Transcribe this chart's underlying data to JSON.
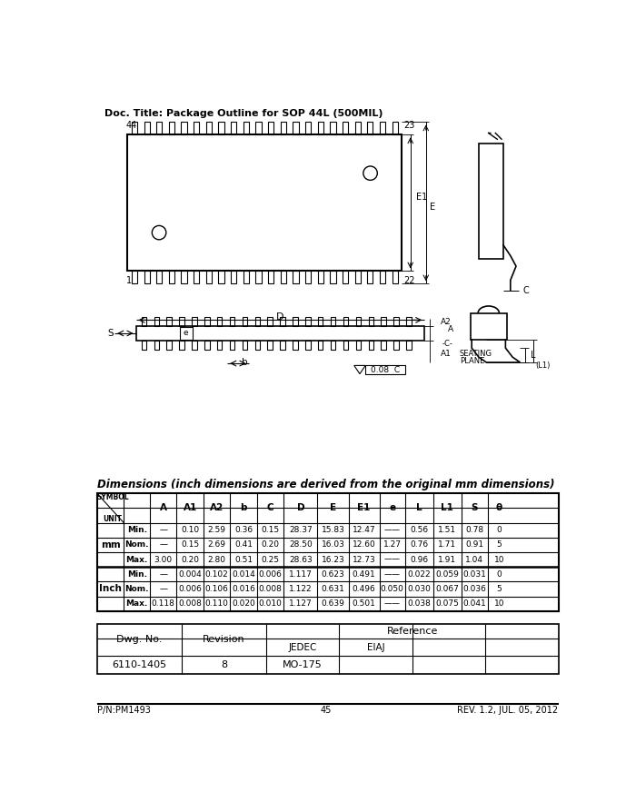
{
  "title": "Doc. Title: Package Outline for SOP 44L (500MIL)",
  "bg_color": "#ffffff",
  "dim_table_title": "Dimensions (inch dimensions are derived from the original mm dimensions)",
  "headers": [
    "A",
    "A1",
    "A2",
    "b",
    "C",
    "D",
    "E",
    "E1",
    "e",
    "L",
    "L1",
    "S",
    "θ"
  ],
  "row_data": [
    [
      "—",
      "0.10",
      "2.59",
      "0.36",
      "0.15",
      "28.37",
      "15.83",
      "12.47",
      "——",
      "0.56",
      "1.51",
      "0.78",
      "0"
    ],
    [
      "—",
      "0.15",
      "2.69",
      "0.41",
      "0.20",
      "28.50",
      "16.03",
      "12.60",
      "1.27",
      "0.76",
      "1.71",
      "0.91",
      "5"
    ],
    [
      "3.00",
      "0.20",
      "2.80",
      "0.51",
      "0.25",
      "28.63",
      "16.23",
      "12.73",
      "——",
      "0.96",
      "1.91",
      "1.04",
      "10"
    ],
    [
      "—",
      "0.004",
      "0.102",
      "0.014",
      "0.006",
      "1.117",
      "0.623",
      "0.491",
      "——",
      "0.022",
      "0.059",
      "0.031",
      "0"
    ],
    [
      "—",
      "0.006",
      "0.106",
      "0.016",
      "0.008",
      "1.122",
      "0.631",
      "0.496",
      "0.050",
      "0.030",
      "0.067",
      "0.036",
      "5"
    ],
    [
      "0.118",
      "0.008",
      "0.110",
      "0.020",
      "0.010",
      "1.127",
      "0.639",
      "0.501",
      "——",
      "0.038",
      "0.075",
      "0.041",
      "10"
    ]
  ],
  "sub_labels": [
    "Min.",
    "Nom.",
    "Max.",
    "Min.",
    "Nom.",
    "Max."
  ],
  "unit_labels": [
    "mm",
    "Inch"
  ],
  "ref_dwg": "6110-1405",
  "ref_revision": "8",
  "ref_jedec": "MO-175",
  "ref_eiaj": "",
  "footer_left": "P/N:PM1493",
  "footer_center": "45",
  "footer_right": "REV. 1.2, JUL. 05, 2012"
}
